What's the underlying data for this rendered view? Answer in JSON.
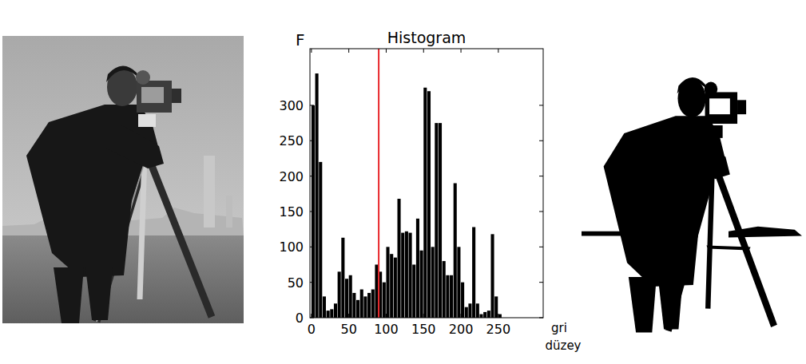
{
  "chart_data": {
    "type": "histogram",
    "title": "Histogram",
    "y_label": "F",
    "x_label": "gri düzey",
    "bins": [
      0,
      5,
      10,
      15,
      20,
      25,
      30,
      35,
      40,
      45,
      50,
      55,
      60,
      65,
      70,
      75,
      80,
      85,
      90,
      95,
      100,
      105,
      110,
      115,
      120,
      125,
      130,
      135,
      140,
      145,
      150,
      155,
      160,
      165,
      170,
      175,
      180,
      185,
      190,
      195,
      200,
      205,
      210,
      215,
      220,
      225,
      230,
      235,
      240,
      245,
      250,
      255
    ],
    "values": [
      300,
      345,
      220,
      30,
      10,
      12,
      20,
      65,
      113,
      55,
      60,
      35,
      25,
      40,
      30,
      35,
      40,
      75,
      65,
      50,
      100,
      90,
      85,
      168,
      120,
      122,
      120,
      75,
      140,
      95,
      325,
      320,
      100,
      275,
      275,
      80,
      60,
      60,
      190,
      100,
      50,
      15,
      20,
      128,
      20,
      5,
      8,
      10,
      118,
      30,
      5
    ],
    "color": "#000000",
    "threshold": 90,
    "xlim": [
      -2,
      310
    ],
    "xticks": [
      0,
      50,
      100,
      150,
      200,
      250
    ],
    "ylim": [
      0,
      380
    ],
    "yticks": [
      0,
      50,
      100,
      150,
      200,
      250,
      300
    ],
    "grid": false
  }
}
